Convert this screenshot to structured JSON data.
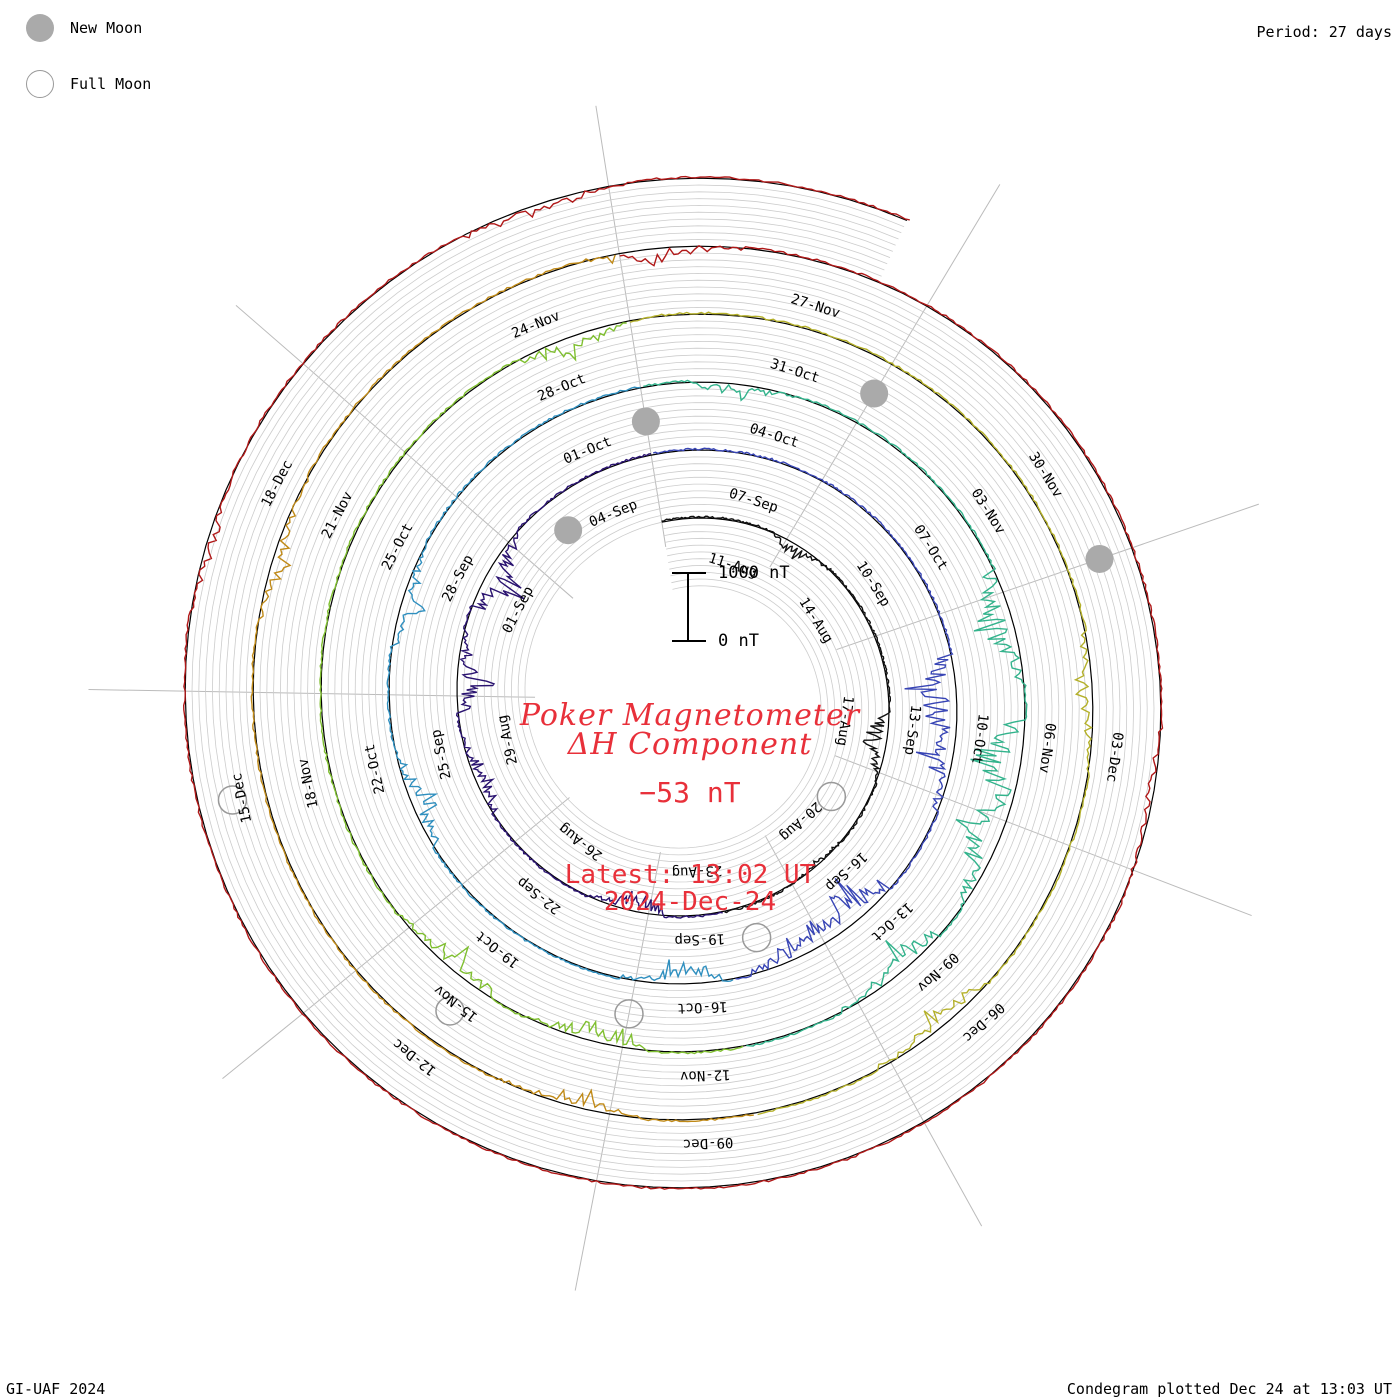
{
  "legend": {
    "new_moon_label": "New Moon",
    "full_moon_label": "Full Moon"
  },
  "period_label": "Period: 27 days",
  "footer_left": "GI-UAF 2024",
  "footer_right": "Condegram plotted Dec 24 at 13:03 UT",
  "title": {
    "line1": "Poker Magnetometer",
    "line2": "ΔH Component",
    "current_value": "−53 nT",
    "latest_time": "Latest: 13:02 UT",
    "latest_date": "2024-Dec-24"
  },
  "scale": {
    "top_label": "1000 nT",
    "bottom_label": "0 nT"
  },
  "colors": {
    "title_red": "#e8303a",
    "moon_fill": "#aaaaaa",
    "grid": "#bbbbbb",
    "turn_colors": [
      "#111111",
      "#2a1370",
      "#3845b5",
      "#2f8fbf",
      "#33b38c",
      "#7fbf30",
      "#b4b02a",
      "#c08a18",
      "#b01818"
    ]
  },
  "chart_data": {
    "type": "line",
    "subtype": "condegram-spiral",
    "period_days": 27,
    "start_date": "2024-08-09",
    "end_date": "2024-12-24",
    "direction": "clockwise",
    "scale_nT": [
      0,
      1000
    ],
    "date_labels": [
      "11-Aug",
      "14-Aug",
      "17-Aug",
      "20-Aug",
      "23-Aug",
      "26-Aug",
      "29-Aug",
      "01-Sep",
      "04-Sep",
      "07-Sep",
      "10-Sep",
      "13-Sep",
      "16-Sep",
      "19-Sep",
      "22-Sep",
      "25-Sep",
      "28-Sep",
      "01-Oct",
      "04-Oct",
      "07-Oct",
      "10-Oct",
      "13-Oct",
      "16-Oct",
      "19-Oct",
      "22-Oct",
      "25-Oct",
      "28-Oct",
      "31-Oct",
      "03-Nov",
      "06-Nov",
      "09-Nov",
      "12-Nov",
      "15-Nov",
      "18-Nov",
      "21-Nov",
      "24-Nov",
      "27-Nov",
      "30-Nov",
      "03-Dec",
      "06-Dec",
      "09-Dec",
      "12-Dec",
      "15-Dec",
      "18-Dec"
    ],
    "new_moons": [
      "2024-09-03",
      "2024-10-02",
      "2024-11-01",
      "2024-12-01"
    ],
    "full_moons": [
      "2024-08-19",
      "2024-09-18",
      "2024-10-17",
      "2024-11-15",
      "2024-12-15"
    ],
    "disturbances": [
      {
        "date": "2024-08-12",
        "amplitude_nT": 300
      },
      {
        "date": "2024-08-17",
        "amplitude_nT": 600
      },
      {
        "date": "2024-08-20",
        "amplitude_nT": 150
      },
      {
        "date": "2024-08-24",
        "amplitude_nT": 500
      },
      {
        "date": "2024-08-28",
        "amplitude_nT": 450
      },
      {
        "date": "2024-08-30",
        "amplitude_nT": 650
      },
      {
        "date": "2024-09-01",
        "amplitude_nT": 800
      },
      {
        "date": "2024-09-12",
        "amplitude_nT": 950
      },
      {
        "date": "2024-09-13",
        "amplitude_nT": 700
      },
      {
        "date": "2024-09-16",
        "amplitude_nT": 900
      },
      {
        "date": "2024-09-17",
        "amplitude_nT": 650
      },
      {
        "date": "2024-09-19",
        "amplitude_nT": 600
      },
      {
        "date": "2024-09-24",
        "amplitude_nT": 500
      },
      {
        "date": "2024-09-27",
        "amplitude_nT": 450
      },
      {
        "date": "2024-10-03",
        "amplitude_nT": 300
      },
      {
        "date": "2024-10-08",
        "amplitude_nT": 800
      },
      {
        "date": "2024-10-10",
        "amplitude_nT": 1000
      },
      {
        "date": "2024-10-11",
        "amplitude_nT": 900
      },
      {
        "date": "2024-10-13",
        "amplitude_nT": 600
      },
      {
        "date": "2024-10-17",
        "amplitude_nT": 500
      },
      {
        "date": "2024-10-19",
        "amplitude_nT": 450
      },
      {
        "date": "2024-10-28",
        "amplitude_nT": 400
      },
      {
        "date": "2024-11-05",
        "amplitude_nT": 350
      },
      {
        "date": "2024-11-09",
        "amplitude_nT": 450
      },
      {
        "date": "2024-11-13",
        "amplitude_nT": 350
      },
      {
        "date": "2024-11-20",
        "amplitude_nT": 300
      },
      {
        "date": "2024-11-25",
        "amplitude_nT": 350
      },
      {
        "date": "2024-12-03",
        "amplitude_nT": 200
      },
      {
        "date": "2024-12-17",
        "amplitude_nT": 200
      },
      {
        "date": "2024-12-21",
        "amplitude_nT": 300
      }
    ]
  }
}
